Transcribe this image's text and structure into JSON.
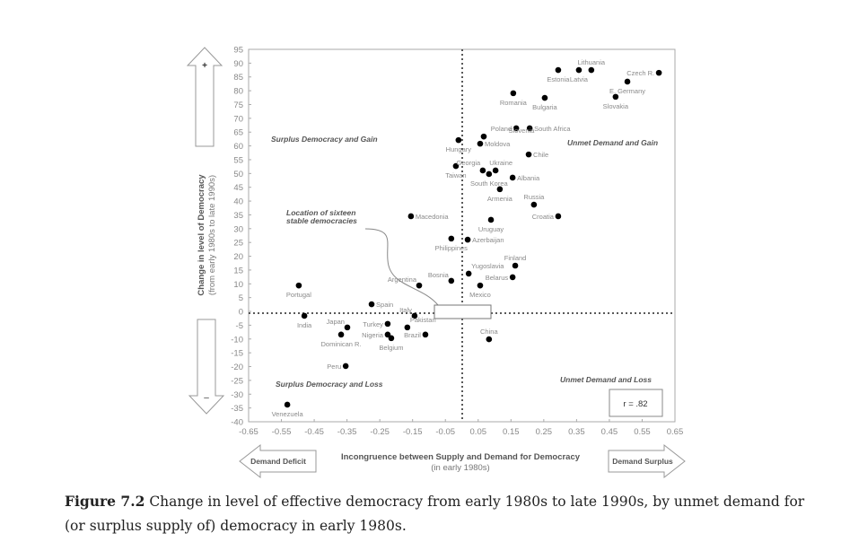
{
  "chart_data": {
    "type": "scatter",
    "title": "",
    "xlabel": "Incongruence between Supply and Demand for Democracy",
    "xlabel_sub": "(in early 1980s)",
    "ylabel": "Change in level of Democracy",
    "ylabel_sub": "(from early 1980s to late 1990s)",
    "xlim": [
      -0.65,
      0.65
    ],
    "ylim": [
      -40,
      95
    ],
    "xticks": [
      "-0.65",
      "-0.55",
      "-0.45",
      "-0.35",
      "-0.25",
      "-0.15",
      "-0.05",
      "0.05",
      "0.15",
      "0.25",
      "0.35",
      "0.45",
      "0.55",
      "0.65"
    ],
    "yticks": [
      "95",
      "90",
      "85",
      "80",
      "75",
      "70",
      "65",
      "60",
      "55",
      "50",
      "45",
      "40",
      "35",
      "30",
      "25",
      "20",
      "15",
      "10",
      "5",
      "0",
      "-5",
      "-10",
      "-15",
      "-20",
      "-25",
      "-30",
      "-35",
      "-40"
    ],
    "quadrants": {
      "top_left": "Surplus Democracy and Gain",
      "top_right": "Unmet Demand and Gain",
      "bottom_left": "Surplus Democracy and Loss",
      "bottom_right": "Unmet Demand and Loss"
    },
    "annotation": "Location of sixteen stable democracies",
    "correlation": "r = .82",
    "arrows": {
      "up": "+",
      "down": "–",
      "left": "Demand Deficit",
      "right": "Demand Surplus"
    },
    "points": [
      {
        "name": "Estonia",
        "x": 0.294,
        "y": 87.5,
        "lp": "b"
      },
      {
        "name": "Latvia",
        "x": 0.357,
        "y": 87.5,
        "lp": "b"
      },
      {
        "name": "Lithuania",
        "x": 0.395,
        "y": 87.5,
        "lp": "t"
      },
      {
        "name": "Czech R.",
        "x": 0.601,
        "y": 86.5,
        "lp": "l"
      },
      {
        "name": "E. Germany",
        "x": 0.505,
        "y": 83.3,
        "lp": "b"
      },
      {
        "name": "Slovakia",
        "x": 0.469,
        "y": 77.8,
        "lp": "b"
      },
      {
        "name": "Romania",
        "x": 0.157,
        "y": 79.1,
        "lp": "b"
      },
      {
        "name": "Bulgaria",
        "x": 0.253,
        "y": 77.4,
        "lp": "b"
      },
      {
        "name": "Poland",
        "x": 0.166,
        "y": 66.4,
        "lp": "l"
      },
      {
        "name": "South Africa",
        "x": 0.207,
        "y": 66.4,
        "lp": "r"
      },
      {
        "name": "Slovenia",
        "x": 0.067,
        "y": 63.4,
        "lp": "sl"
      },
      {
        "name": "Moldova",
        "x": 0.056,
        "y": 60.8,
        "lp": "r"
      },
      {
        "name": "Hungary",
        "x": -0.01,
        "y": 62.1,
        "lp": "b"
      },
      {
        "name": "Chile",
        "x": 0.204,
        "y": 56.9,
        "lp": "r"
      },
      {
        "name": "Taiwan",
        "x": -0.018,
        "y": 52.7,
        "lp": "b"
      },
      {
        "name": "Georgia",
        "x": 0.064,
        "y": 51.1,
        "lp": "g"
      },
      {
        "name": "South Korea",
        "x": 0.083,
        "y": 49.8,
        "lp": "b"
      },
      {
        "name": "Ukraine",
        "x": 0.103,
        "y": 51.1,
        "lp": "u"
      },
      {
        "name": "Albania",
        "x": 0.155,
        "y": 48.5,
        "lp": "r"
      },
      {
        "name": "Armenia",
        "x": 0.116,
        "y": 44.3,
        "lp": "b"
      },
      {
        "name": "Russia",
        "x": 0.22,
        "y": 38.7,
        "lp": "t"
      },
      {
        "name": "Croatia",
        "x": 0.294,
        "y": 34.5,
        "lp": "l"
      },
      {
        "name": "Macedonia",
        "x": -0.155,
        "y": 34.5,
        "lp": "r"
      },
      {
        "name": "Uruguay",
        "x": 0.089,
        "y": 33.2,
        "lp": "b"
      },
      {
        "name": "Azerbaijan",
        "x": 0.018,
        "y": 26.0,
        "lp": "r"
      },
      {
        "name": "Philippines",
        "x": -0.032,
        "y": 26.4,
        "lp": "b"
      },
      {
        "name": "Finland",
        "x": 0.163,
        "y": 16.6,
        "lp": "t"
      },
      {
        "name": "Yugoslavia",
        "x": 0.021,
        "y": 13.7,
        "lp": "tr"
      },
      {
        "name": "Bosnia",
        "x": -0.032,
        "y": 11.1,
        "lp": "tl"
      },
      {
        "name": "Belarus",
        "x": 0.155,
        "y": 12.4,
        "lp": "l"
      },
      {
        "name": "Argentina",
        "x": -0.13,
        "y": 9.4,
        "lp": "tl"
      },
      {
        "name": "Mexico",
        "x": 0.056,
        "y": 9.4,
        "lp": "b"
      },
      {
        "name": "Portugal",
        "x": -0.497,
        "y": 9.4,
        "lp": "b"
      },
      {
        "name": "Spain",
        "x": -0.275,
        "y": 2.6,
        "lp": "r"
      },
      {
        "name": "India",
        "x": -0.48,
        "y": -1.6,
        "lp": "b"
      },
      {
        "name": "Italy",
        "x": -0.144,
        "y": -1.6,
        "lp": "tl"
      },
      {
        "name": "Turkey",
        "x": -0.226,
        "y": -4.5,
        "lp": "l"
      },
      {
        "name": "Pakistan",
        "x": -0.166,
        "y": -5.8,
        "lp": "tr"
      },
      {
        "name": "Japan",
        "x": -0.349,
        "y": -5.8,
        "lp": "tl"
      },
      {
        "name": "Dominican R.",
        "x": -0.368,
        "y": -8.4,
        "lp": "b"
      },
      {
        "name": "Nigeria",
        "x": -0.226,
        "y": -8.4,
        "lp": "l"
      },
      {
        "name": "Belgium",
        "x": -0.215,
        "y": -9.7,
        "lp": "b"
      },
      {
        "name": "Brazil",
        "x": -0.111,
        "y": -8.4,
        "lp": "l"
      },
      {
        "name": "China",
        "x": 0.083,
        "y": -10.1,
        "lp": "t"
      },
      {
        "name": "Peru",
        "x": -0.354,
        "y": -19.8,
        "lp": "l"
      },
      {
        "name": "Venezuela",
        "x": -0.532,
        "y": -33.8,
        "lp": "b"
      }
    ]
  },
  "caption": {
    "label": "Figure 7.2",
    "text": " Change in level of effective democracy from early 1980s to late 1990s, by unmet demand for (or surplus supply of) democracy in early 1980s."
  }
}
